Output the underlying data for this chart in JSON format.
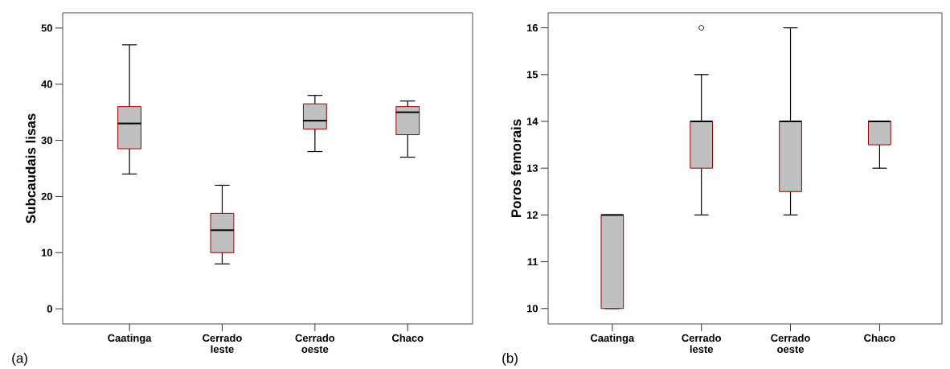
{
  "chart_data": [
    {
      "type": "box",
      "ylabel": "Subcaudais lisas",
      "categories": [
        "Caatinga",
        "Cerrado leste",
        "Cerrado oeste",
        "Chaco"
      ],
      "color": "#c0c0c0",
      "grid": false,
      "ylim": [
        -2.7,
        52.7
      ],
      "yticks": [
        0,
        10,
        20,
        30,
        40,
        50
      ],
      "annotations": [
        "(a)"
      ],
      "boxes": [
        {
          "low": 24,
          "q1": 28.5,
          "median": 33,
          "q3": 36,
          "high": 47
        },
        {
          "low": 8,
          "q1": 10,
          "median": 14,
          "q3": 17,
          "high": 22
        },
        {
          "low": 28,
          "q1": 32,
          "median": 33.5,
          "q3": 36.5,
          "high": 38
        },
        {
          "low": 27,
          "q1": 31,
          "median": 35,
          "q3": 36,
          "high": 37
        }
      ]
    },
    {
      "type": "box",
      "ylabel": "Poros femorais",
      "categories": [
        "Caatinga",
        "Cerrado leste",
        "Cerrado oeste",
        "Chaco"
      ],
      "color": "#c0c0c0",
      "grid": false,
      "ylim": [
        9.67,
        16.32
      ],
      "yticks": [
        10,
        11,
        12,
        13,
        14,
        15,
        16
      ],
      "annotations": [
        "(b)"
      ],
      "boxes": [
        {
          "low": 10,
          "q1": 10,
          "median": 12,
          "q3": 12,
          "high": 12
        },
        {
          "low": 12,
          "q1": 13,
          "median": 14,
          "q3": 14,
          "high": 15,
          "outliers": [
            16
          ]
        },
        {
          "low": 12,
          "q1": 12.5,
          "median": 14,
          "q3": 14,
          "high": 16
        },
        {
          "low": 13,
          "q1": 13.5,
          "median": 14,
          "q3": 14,
          "high": 14
        }
      ]
    }
  ]
}
